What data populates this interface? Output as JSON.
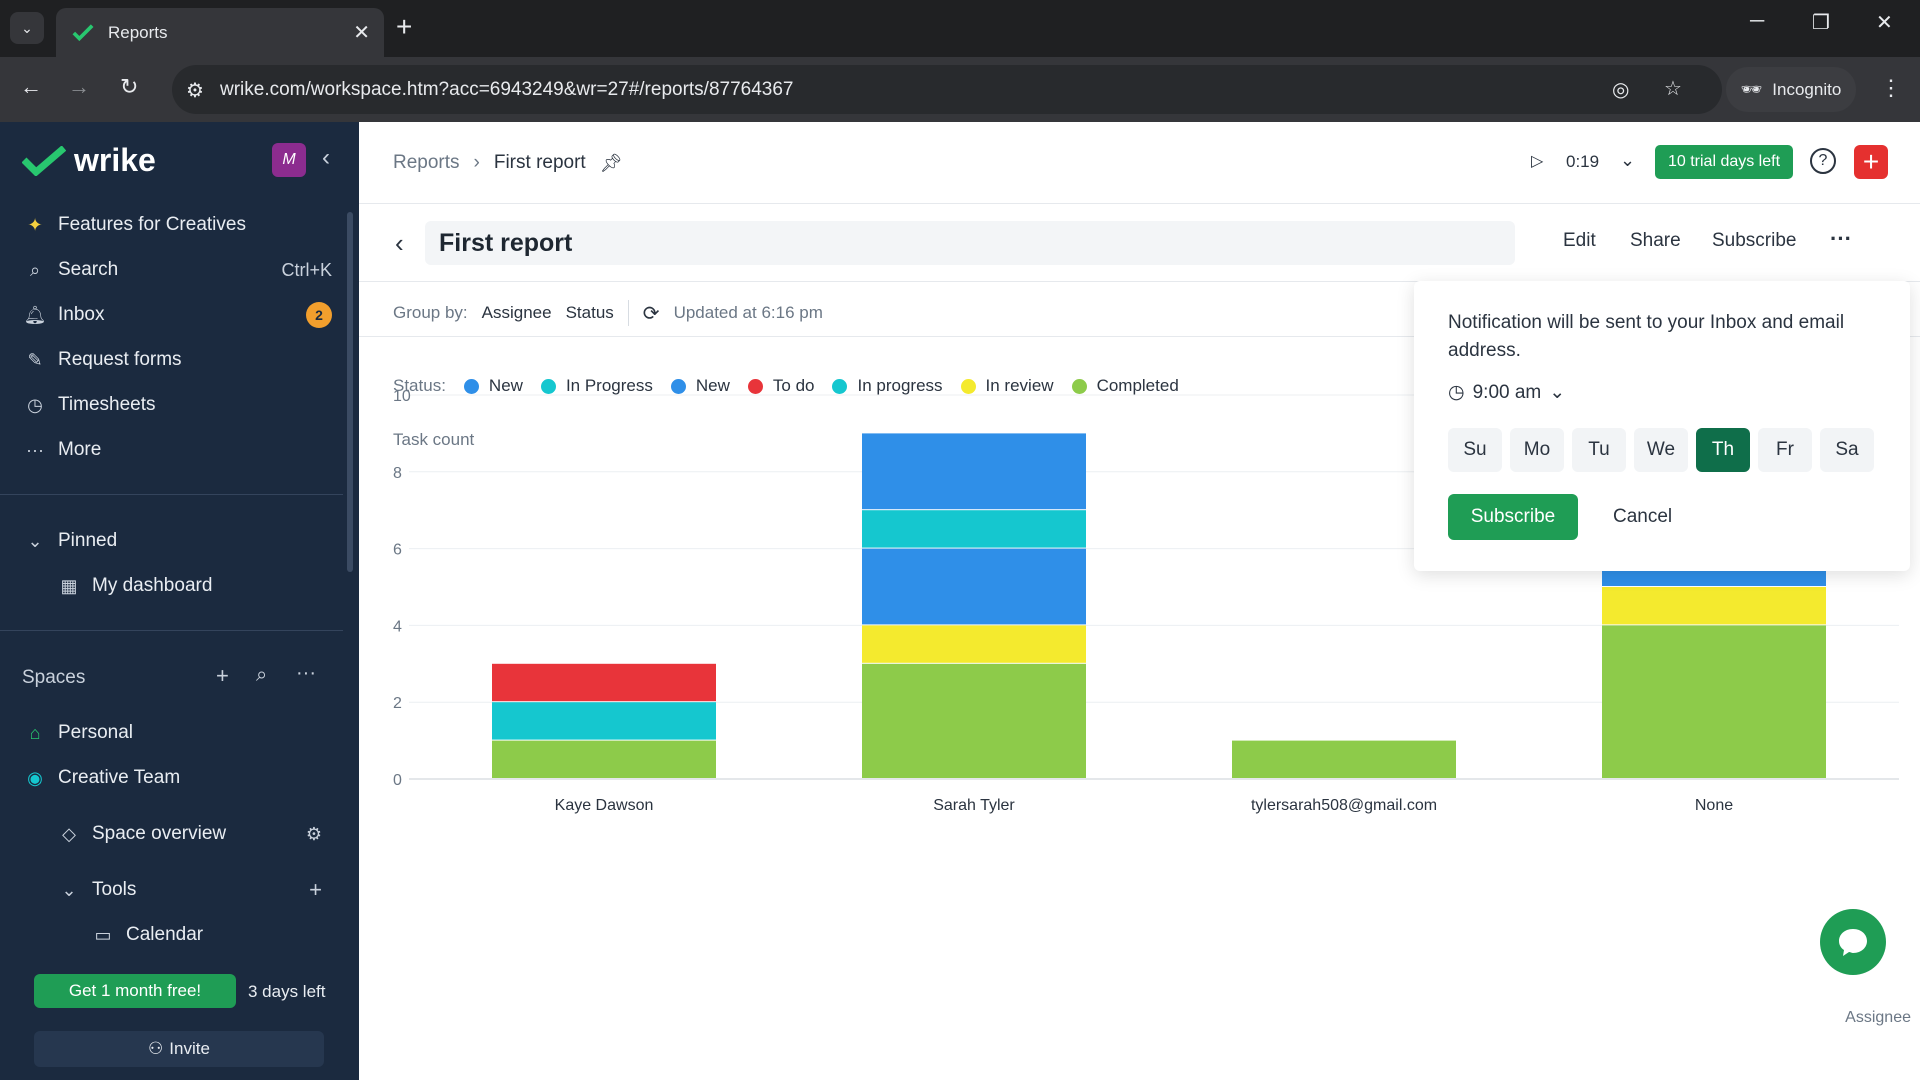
{
  "browser": {
    "tab_title": "Reports",
    "url": "wrike.com/workspace.htm?acc=6943249&wr=27#/reports/87764367",
    "incognito_label": "Incognito"
  },
  "sidebar": {
    "logo_text": "wrike",
    "items": [
      {
        "label": "Features for Creatives",
        "icon": "sparkle-icon"
      },
      {
        "label": "Search",
        "icon": "search-icon",
        "shortcut": "Ctrl+K"
      },
      {
        "label": "Inbox",
        "icon": "bell-icon",
        "badge": "2"
      },
      {
        "label": "Request forms",
        "icon": "form-icon"
      },
      {
        "label": "Timesheets",
        "icon": "clock-icon"
      },
      {
        "label": "More",
        "icon": "more-icon"
      }
    ],
    "pinned": {
      "heading": "Pinned",
      "items": [
        {
          "label": "My dashboard"
        }
      ]
    },
    "spaces": {
      "heading": "Spaces",
      "items": [
        {
          "label": "Personal"
        },
        {
          "label": "Creative Team"
        },
        {
          "label": "Space overview"
        },
        {
          "label": "Tools"
        },
        {
          "label": "Calendar"
        }
      ]
    },
    "promo_label": "Get 1 month free!",
    "days_left": "3 days left",
    "invite_label": "Invite"
  },
  "header": {
    "breadcrumb_root": "Reports",
    "breadcrumb_current": "First report",
    "timer": "0:19",
    "trial_label": "10 trial days left"
  },
  "report": {
    "title": "First report",
    "actions": {
      "edit": "Edit",
      "share": "Share",
      "subscribe": "Subscribe"
    },
    "group_by_label": "Group by:",
    "group_by_values": [
      "Assignee",
      "Status"
    ],
    "updated": "Updated at 6:16 pm",
    "status_label": "Status:"
  },
  "colors": {
    "new": "#2f8fe8",
    "in_progress": "#15c7cf",
    "to_do": "#e8343a",
    "in_review": "#f4ea2e",
    "completed": "#8dcb4a",
    "brand_green": "#1f9d55",
    "sidebar_bg": "#1b2a3f"
  },
  "subscribe_popup": {
    "message": "Notification will be sent to your Inbox and email address.",
    "time": "9:00 am",
    "days": [
      "Su",
      "Mo",
      "Tu",
      "We",
      "Th",
      "Fr",
      "Sa"
    ],
    "selected_day": "Th",
    "subscribe_label": "Subscribe",
    "cancel_label": "Cancel"
  },
  "chart_data": {
    "type": "bar",
    "stacked": true,
    "ylabel": "Task count",
    "xlabel": "Assignee",
    "ylim": [
      0,
      10
    ],
    "yticks": [
      0,
      2,
      4,
      6,
      8,
      10
    ],
    "grid": true,
    "categories": [
      "Kaye Dawson",
      "Sarah Tyler",
      "tylersarah508@gmail.com",
      "None"
    ],
    "legend": [
      {
        "name": "New",
        "color": "#2f8fe8"
      },
      {
        "name": "In Progress",
        "color": "#15c7cf"
      },
      {
        "name": "New",
        "color": "#2f8fe8"
      },
      {
        "name": "To do",
        "color": "#e8343a"
      },
      {
        "name": "In progress",
        "color": "#15c7cf"
      },
      {
        "name": "In review",
        "color": "#f4ea2e"
      },
      {
        "name": "Completed",
        "color": "#8dcb4a"
      }
    ],
    "series": [
      {
        "name": "Completed",
        "color": "#8dcb4a",
        "values": [
          1,
          3,
          1,
          4
        ]
      },
      {
        "name": "In review",
        "color": "#f4ea2e",
        "values": [
          0,
          1,
          0,
          1
        ]
      },
      {
        "name": "New",
        "color": "#2f8fe8",
        "values": [
          0,
          2,
          0,
          0
        ]
      },
      {
        "name": "In progress",
        "color": "#15c7cf",
        "values": [
          1,
          1,
          0,
          0
        ]
      },
      {
        "name": "To do",
        "color": "#e8343a",
        "values": [
          1,
          0,
          0,
          0
        ]
      },
      {
        "name": "New",
        "color": "#2f8fe8",
        "values": [
          0,
          2,
          0,
          2
        ]
      }
    ]
  }
}
